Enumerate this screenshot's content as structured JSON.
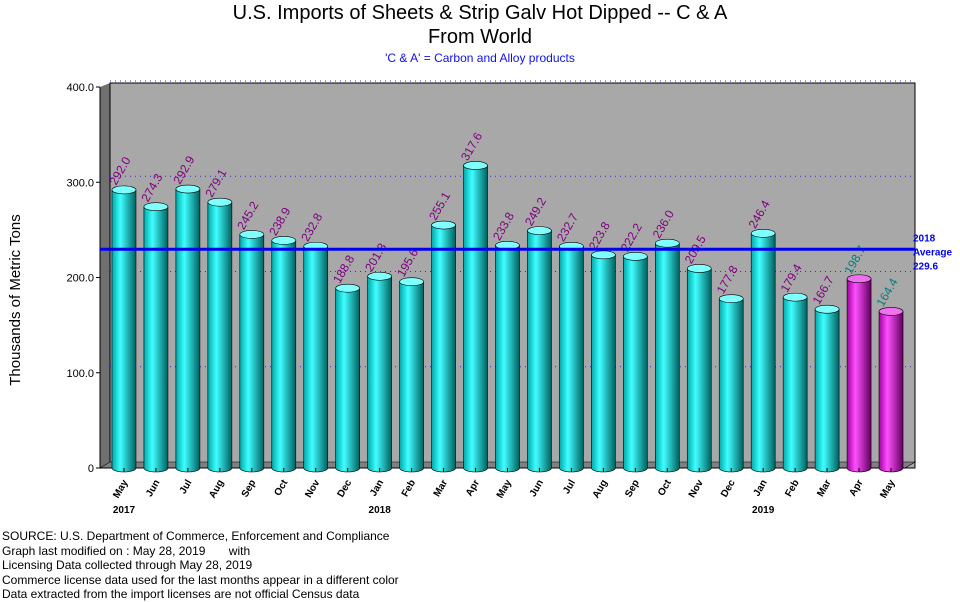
{
  "title_line1": "U.S. Imports of Sheets & Strip Galv Hot Dipped -- C & A",
  "title_line2": "From World",
  "subtitle": "'C & A' = Carbon and Alloy products",
  "average_label": {
    "line1": "2018",
    "line2": "Average",
    "value": "229.6"
  },
  "footer": [
    "SOURCE: U.S. Department of Commerce, Enforcement and Compliance",
    "Graph last modified on : May 28, 2019       with",
    "Licensing Data collected through May 28, 2019",
    "Commerce license data used for the last months appear in a different color",
    "Data extracted from the import licenses are not official Census data"
  ],
  "colors": {
    "bar": "#00c8c8",
    "license_bar": "#d000d0",
    "average_line": "#0000ee",
    "value_label": "#800080",
    "license_value_label": "#008080",
    "plot_background": "#a8a8a8"
  },
  "chart_data": {
    "type": "bar",
    "title": "U.S. Imports of Sheets & Strip Galv Hot Dipped -- C & A",
    "subtitle": "From World",
    "ylabel": "Thousands of Metric Tons",
    "ylim": [
      0,
      400
    ],
    "yticks": [
      "0",
      "100.0",
      "200.0",
      "300.0",
      "400.0"
    ],
    "grid": true,
    "categories": [
      "May",
      "Jun",
      "Jul",
      "Aug",
      "Sep",
      "Oct",
      "Nov",
      "Dec",
      "Jan",
      "Feb",
      "Mar",
      "Apr",
      "May",
      "Jun",
      "Jul",
      "Aug",
      "Sep",
      "Oct",
      "Nov",
      "Dec",
      "Jan",
      "Feb",
      "Mar",
      "Apr",
      "May"
    ],
    "values": [
      292.0,
      274.3,
      292.9,
      279.1,
      245.2,
      238.9,
      232.8,
      188.8,
      201.3,
      195.6,
      255.1,
      317.6,
      233.8,
      249.2,
      232.7,
      223.8,
      222.2,
      236.0,
      209.5,
      177.8,
      246.4,
      179.4,
      166.7,
      198.7,
      164.4
    ],
    "value_labels": [
      "292.0",
      "274.3",
      "292.9",
      "279.1",
      "245.2",
      "238.9",
      "232.8",
      "188.8",
      "201.3",
      "195.6",
      "255.1",
      "317.6",
      "233.8",
      "249.2",
      "232.7",
      "223.8",
      "222.2",
      "236.0",
      "209.5",
      "177.8",
      "246.4",
      "179.4",
      "166.7",
      "198.7",
      "164.4"
    ],
    "license_data": [
      false,
      false,
      false,
      false,
      false,
      false,
      false,
      false,
      false,
      false,
      false,
      false,
      false,
      false,
      false,
      false,
      false,
      false,
      false,
      false,
      false,
      false,
      false,
      true,
      true
    ],
    "years": [
      {
        "label": "2017",
        "index": 0
      },
      {
        "label": "2018",
        "index": 8
      },
      {
        "label": "2019",
        "index": 20
      }
    ],
    "average": 229.6
  }
}
